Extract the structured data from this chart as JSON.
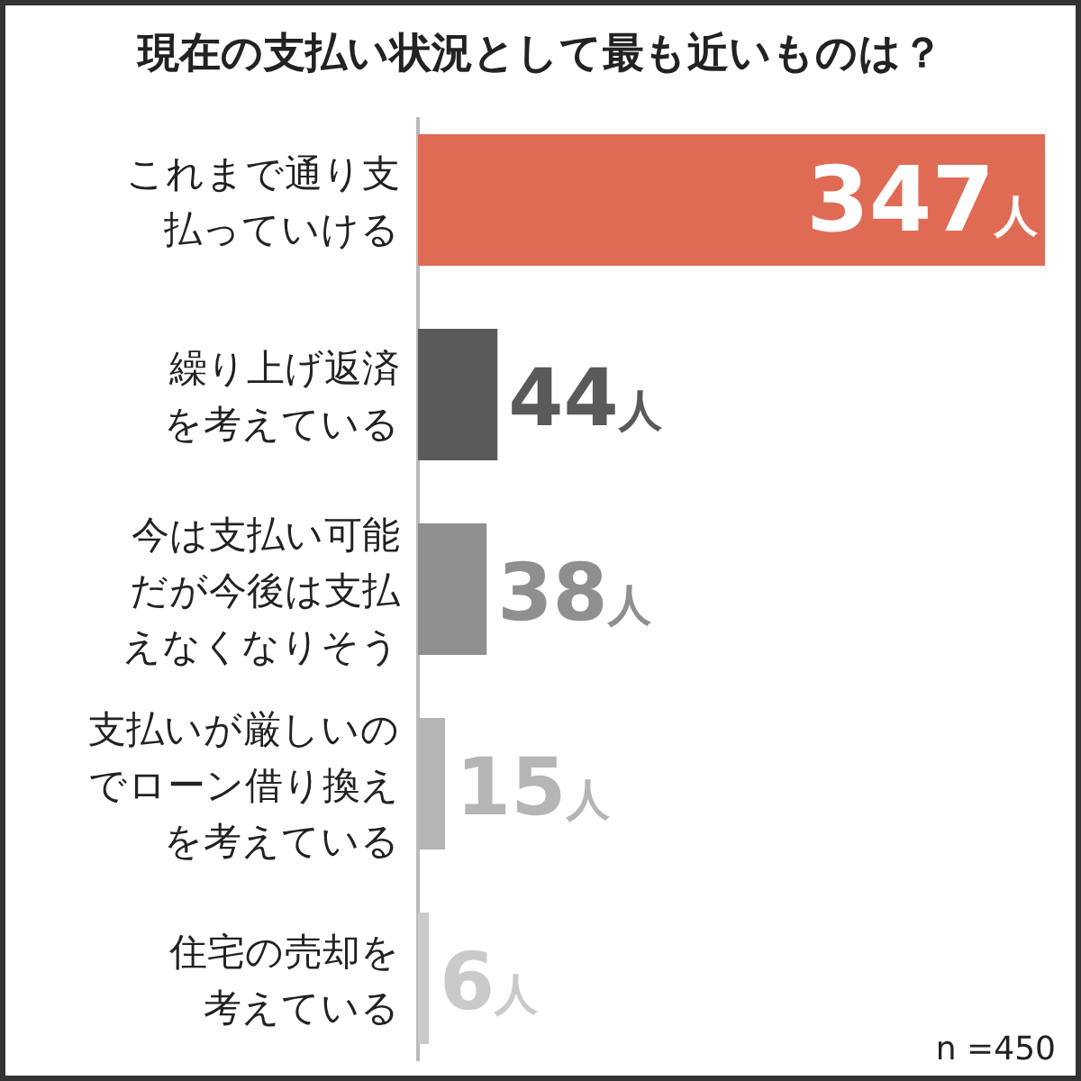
{
  "chart_data": {
    "type": "bar",
    "orientation": "horizontal",
    "title": "現在の支払い状況として最も近いものは？",
    "categories": [
      "これまで通り支払っていける",
      "繰り上げ返済を考えている",
      "今は支払い可能だが今後は支払えなくなりそう",
      "支払いが厳しいのでローン借り換えを考えている",
      "住宅の売却を考えている"
    ],
    "values": [
      347,
      44,
      38,
      15,
      6
    ],
    "colors": [
      "#e06b55",
      "#5a5a5a",
      "#8f8f8f",
      "#b5b5b5",
      "#cacaca"
    ],
    "value_labels": [
      "347人",
      "44人",
      "38人",
      "15人",
      "6人"
    ],
    "annotations": [
      "n =450"
    ]
  }
}
